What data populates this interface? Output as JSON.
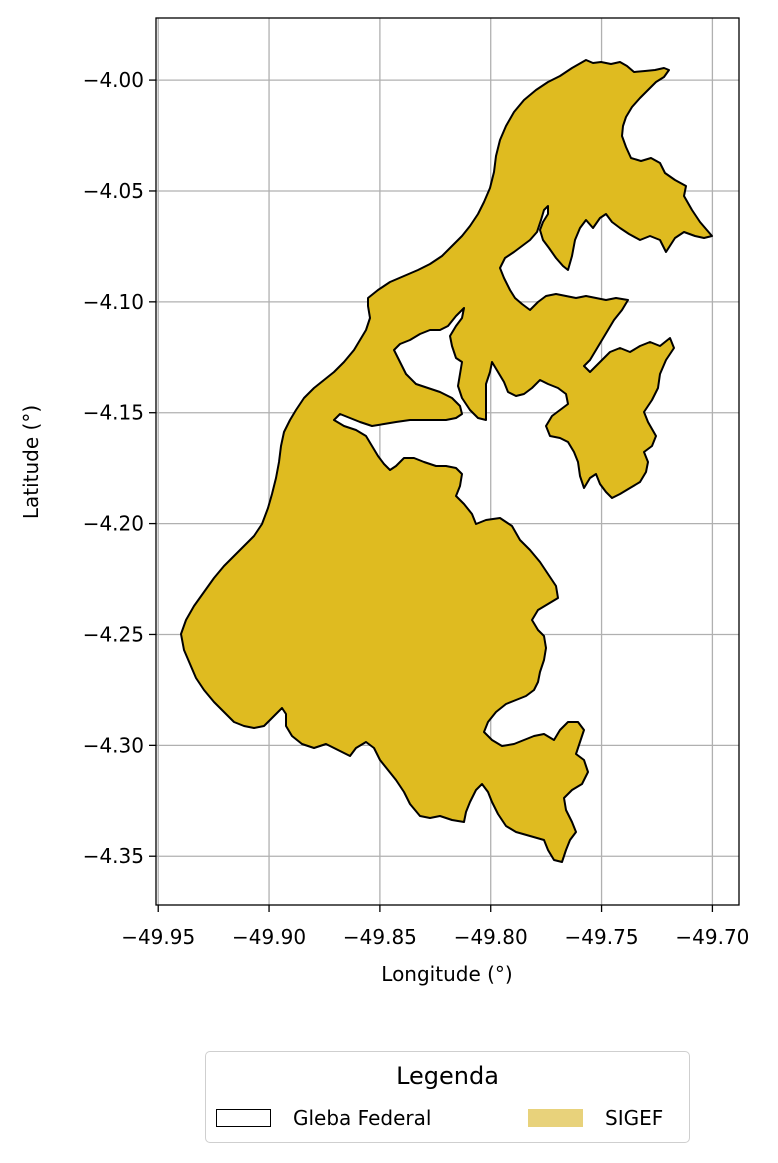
{
  "chart_data": {
    "type": "map",
    "xlabel": "Longitude (°)",
    "ylabel": "Latitude (°)",
    "xlim": [
      -49.951,
      -49.688
    ],
    "ylim": [
      -4.372,
      -3.972
    ],
    "xticks": [
      -49.95,
      -49.9,
      -49.85,
      -49.8,
      -49.75,
      -49.7
    ],
    "xtick_labels": [
      "−49.95",
      "−49.90",
      "−49.85",
      "−49.80",
      "−49.75",
      "−49.70"
    ],
    "yticks": [
      -4.0,
      -4.05,
      -4.1,
      -4.15,
      -4.2,
      -4.25,
      -4.3,
      -4.35
    ],
    "ytick_labels": [
      "−4.00",
      "−4.05",
      "−4.10",
      "−4.15",
      "−4.20",
      "−4.25",
      "−4.30",
      "−4.35"
    ],
    "grid": true,
    "layers": [
      {
        "name": "Gleba Federal",
        "style": "outline",
        "edge_color": "#000000"
      },
      {
        "name": "SIGEF",
        "style": "fill",
        "fill_color": "#dfbb20",
        "edge_color": "#000000"
      }
    ]
  },
  "legend": {
    "title": "Legenda",
    "items": [
      {
        "label": "Gleba Federal",
        "style": "outline"
      },
      {
        "label": "SIGEF",
        "style": "fill",
        "color": "#e8d27b"
      }
    ],
    "placement": "bottom-center"
  }
}
